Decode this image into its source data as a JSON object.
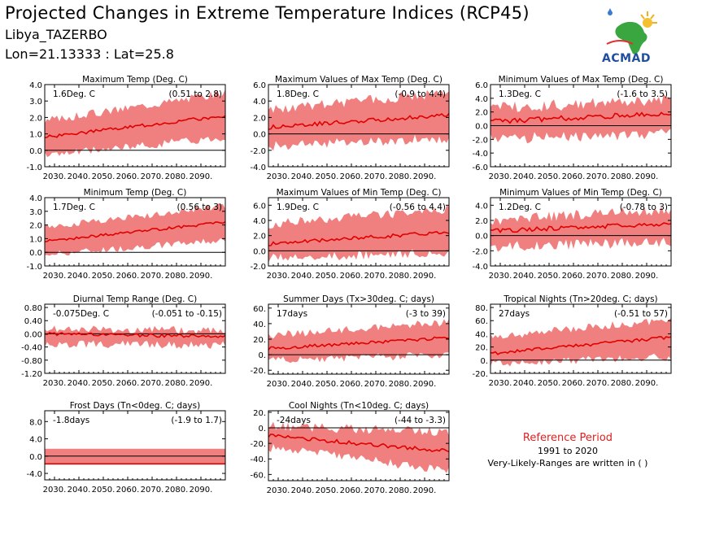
{
  "header": {
    "title": "Projected Changes in Extreme Temperature Indices (RCP45)",
    "station": "Libya_TAZERBO",
    "coords": "Lon=21.13333 : Lat=25.8"
  },
  "logo": {
    "text": "ACMAD",
    "icon": "africa-map-logo-icon"
  },
  "reference": {
    "title": "Reference Period",
    "years": "1991 to 2020",
    "note": "Very-Likely-Ranges are written in ( )"
  },
  "colors": {
    "band": "#f08080",
    "line": "#e00000",
    "axis": "#000000"
  },
  "chart_data": [
    {
      "id": "max-temp",
      "type": "area",
      "title": "Maximum Temp (Deg. C)",
      "change": "1.6Deg. C",
      "range": "(0.51 to 2.8)",
      "yticks": [
        "4.0",
        "3.0",
        "2.0",
        "1.0",
        "0.0",
        "-1.0"
      ],
      "ylim": [
        -1.0,
        4.0
      ],
      "xticks": [
        "2030.",
        "2040.",
        "2050.",
        "2060.",
        "2070.",
        "2080.",
        "2090."
      ],
      "xlim": [
        2026,
        2100
      ],
      "x_start": 2026,
      "x_end": 2100,
      "median_start": 0.8,
      "median_end": 2.1,
      "low_start": -0.3,
      "low_end": 0.8,
      "high_start": 1.8,
      "high_end": 3.5,
      "noise": 0.25
    },
    {
      "id": "max-of-max",
      "type": "area",
      "title": "Maximum Values of Max Temp (Deg. C)",
      "change": "1.8Deg. C",
      "range": "(-0.9 to 4.4)",
      "yticks": [
        "6.0",
        "4.0",
        "2.0",
        "0.0",
        "-2.0",
        "-4.0"
      ],
      "ylim": [
        -4.0,
        6.0
      ],
      "xticks": [
        "2030.",
        "2040.",
        "2050.",
        "2060.",
        "2070.",
        "2080.",
        "2090."
      ],
      "xlim": [
        2026,
        2100
      ],
      "x_start": 2026,
      "x_end": 2100,
      "median_start": 0.8,
      "median_end": 2.3,
      "low_start": -1.5,
      "low_end": -0.5,
      "high_start": 3.0,
      "high_end": 5.0,
      "noise": 0.6
    },
    {
      "id": "min-of-max",
      "type": "area",
      "title": "Minimum Values of Max Temp (Deg. C)",
      "change": "1.3Deg. C",
      "range": "(-1.6 to 3.5)",
      "yticks": [
        "6.0",
        "4.0",
        "2.0",
        "0.0",
        "-2.0",
        "-4.0",
        "-6.0"
      ],
      "ylim": [
        -6.0,
        6.0
      ],
      "xticks": [
        "2030.",
        "2040.",
        "2050.",
        "2060.",
        "2070.",
        "2080.",
        "2090."
      ],
      "xlim": [
        2026,
        2100
      ],
      "x_start": 2026,
      "x_end": 2100,
      "median_start": 0.6,
      "median_end": 1.8,
      "low_start": -2.0,
      "low_end": -1.2,
      "high_start": 2.5,
      "high_end": 4.0,
      "noise": 0.9
    },
    {
      "id": "min-temp",
      "type": "area",
      "title": "Minimum Temp (Deg. C)",
      "change": "1.7Deg. C",
      "range": "(0.56 to 3)",
      "yticks": [
        "4.0",
        "3.0",
        "2.0",
        "1.0",
        "0.0",
        "-1.0"
      ],
      "ylim": [
        -1.0,
        4.0
      ],
      "xticks": [
        "2030.",
        "2040.",
        "2050.",
        "2060.",
        "2070.",
        "2080.",
        "2090."
      ],
      "xlim": [
        2026,
        2100
      ],
      "x_start": 2026,
      "x_end": 2100,
      "median_start": 0.8,
      "median_end": 2.2,
      "low_start": -0.2,
      "low_end": 0.9,
      "high_start": 1.8,
      "high_end": 3.4,
      "noise": 0.25
    },
    {
      "id": "max-of-min",
      "type": "area",
      "title": "Maximum Values of Min Temp (Deg. C)",
      "change": "1.9Deg. C",
      "range": "(-0.56 to 4.4)",
      "yticks": [
        "6.0",
        "4.0",
        "2.0",
        "0.0",
        "-2.0"
      ],
      "ylim": [
        -2.0,
        7.0
      ],
      "xticks": [
        "2030.",
        "2040.",
        "2050.",
        "2060.",
        "2070.",
        "2080.",
        "2090."
      ],
      "xlim": [
        2026,
        2100
      ],
      "x_start": 2026,
      "x_end": 2100,
      "median_start": 0.9,
      "median_end": 2.5,
      "low_start": -1.0,
      "low_end": -0.2,
      "high_start": 3.5,
      "high_end": 5.5,
      "noise": 0.6
    },
    {
      "id": "min-of-min",
      "type": "area",
      "title": "Minimum Values of Min Temp (Deg. C)",
      "change": "1.2Deg. C",
      "range": "(-0.78 to 3)",
      "yticks": [
        "4.0",
        "2.0",
        "0.0",
        "-2.0",
        "-4.0"
      ],
      "ylim": [
        -4.0,
        5.0
      ],
      "xticks": [
        "2030.",
        "2040.",
        "2050.",
        "2060.",
        "2070.",
        "2080.",
        "2090."
      ],
      "xlim": [
        2026,
        2100
      ],
      "x_start": 2026,
      "x_end": 2100,
      "median_start": 0.6,
      "median_end": 1.6,
      "low_start": -1.5,
      "low_end": -0.8,
      "high_start": 2.0,
      "high_end": 3.5,
      "noise": 0.7
    },
    {
      "id": "dtr",
      "type": "area",
      "title": "Diurnal Temp Range (Deg. C)",
      "change": "-0.075Deg. C",
      "range": "(-0.051 to -0.15)",
      "yticks": [
        "0.80",
        "0.40",
        "0.00",
        "-0.40",
        "-0.80",
        "-1.20"
      ],
      "ylim": [
        -1.2,
        0.9
      ],
      "xticks": [
        "2030.",
        "2040.",
        "2050.",
        "2060.",
        "2070.",
        "2080.",
        "2090."
      ],
      "xlim": [
        2026,
        2100
      ],
      "x_start": 2026,
      "x_end": 2100,
      "median_start": 0.0,
      "median_end": -0.08,
      "low_start": -0.3,
      "low_end": -0.35,
      "high_start": 0.15,
      "high_end": 0.1,
      "noise": 0.12
    },
    {
      "id": "summer-days",
      "type": "area",
      "title": "Summer Days (Tx>30deg. C; days)",
      "change": "17days",
      "range": "(-3 to 39)",
      "yticks": [
        "60.",
        "40.",
        "20.",
        "0.",
        "-20."
      ],
      "ylim": [
        -25,
        65
      ],
      "xticks": [
        "2030.",
        "2040.",
        "2050.",
        "2060.",
        "2070.",
        "2080.",
        "2090."
      ],
      "xlim": [
        2026,
        2100
      ],
      "x_start": 2026,
      "x_end": 2100,
      "median_start": 8,
      "median_end": 22,
      "low_start": -8,
      "low_end": 0,
      "high_start": 25,
      "high_end": 42,
      "noise": 5
    },
    {
      "id": "tropical-nights",
      "type": "area",
      "title": "Tropical Nights (Tn>20deg. C; days)",
      "change": "27days",
      "range": "(-0.51 to 57)",
      "yticks": [
        "80.",
        "60.",
        "40.",
        "20.",
        "0.",
        "-20."
      ],
      "ylim": [
        -20,
        85
      ],
      "xticks": [
        "2030.",
        "2040.",
        "2050.",
        "2060.",
        "2070.",
        "2080.",
        "2090."
      ],
      "xlim": [
        2026,
        2100
      ],
      "x_start": 2026,
      "x_end": 2100,
      "median_start": 10,
      "median_end": 35,
      "low_start": -5,
      "low_end": 5,
      "high_start": 35,
      "high_end": 62,
      "noise": 6
    },
    {
      "id": "frost-days",
      "type": "area",
      "title": "Frost Days (Tn<0deg. C; days)",
      "change": "-1.8days",
      "range": "(-1.9 to 1.7)",
      "yticks": [
        "8.0",
        "4.0",
        "0.0",
        "-4.0"
      ],
      "ylim": [
        -5.5,
        10.5
      ],
      "xticks": [
        "2030.",
        "2040.",
        "2050.",
        "2060.",
        "2070.",
        "2080.",
        "2090."
      ],
      "xlim": [
        2026,
        2100
      ],
      "x_start": 2026,
      "x_end": 2100,
      "median_start": -1.8,
      "median_end": -1.8,
      "low_start": -1.9,
      "low_end": -1.9,
      "high_start": 1.7,
      "high_end": 1.7,
      "noise": 0
    },
    {
      "id": "cool-nights",
      "type": "area",
      "title": "Cool Nights (Tn<10deg. C; days)",
      "change": "-24days",
      "range": "(-44 to -3.3)",
      "yticks": [
        "20.",
        "0.",
        "-20.",
        "-40.",
        "-60."
      ],
      "ylim": [
        -68,
        22
      ],
      "xticks": [
        "2030.",
        "2040.",
        "2050.",
        "2060.",
        "2070.",
        "2080.",
        "2090."
      ],
      "xlim": [
        2026,
        2100
      ],
      "x_start": 2026,
      "x_end": 2100,
      "median_start": -10,
      "median_end": -30,
      "low_start": -25,
      "low_end": -55,
      "high_start": 2,
      "high_end": -5,
      "noise": 6
    }
  ]
}
